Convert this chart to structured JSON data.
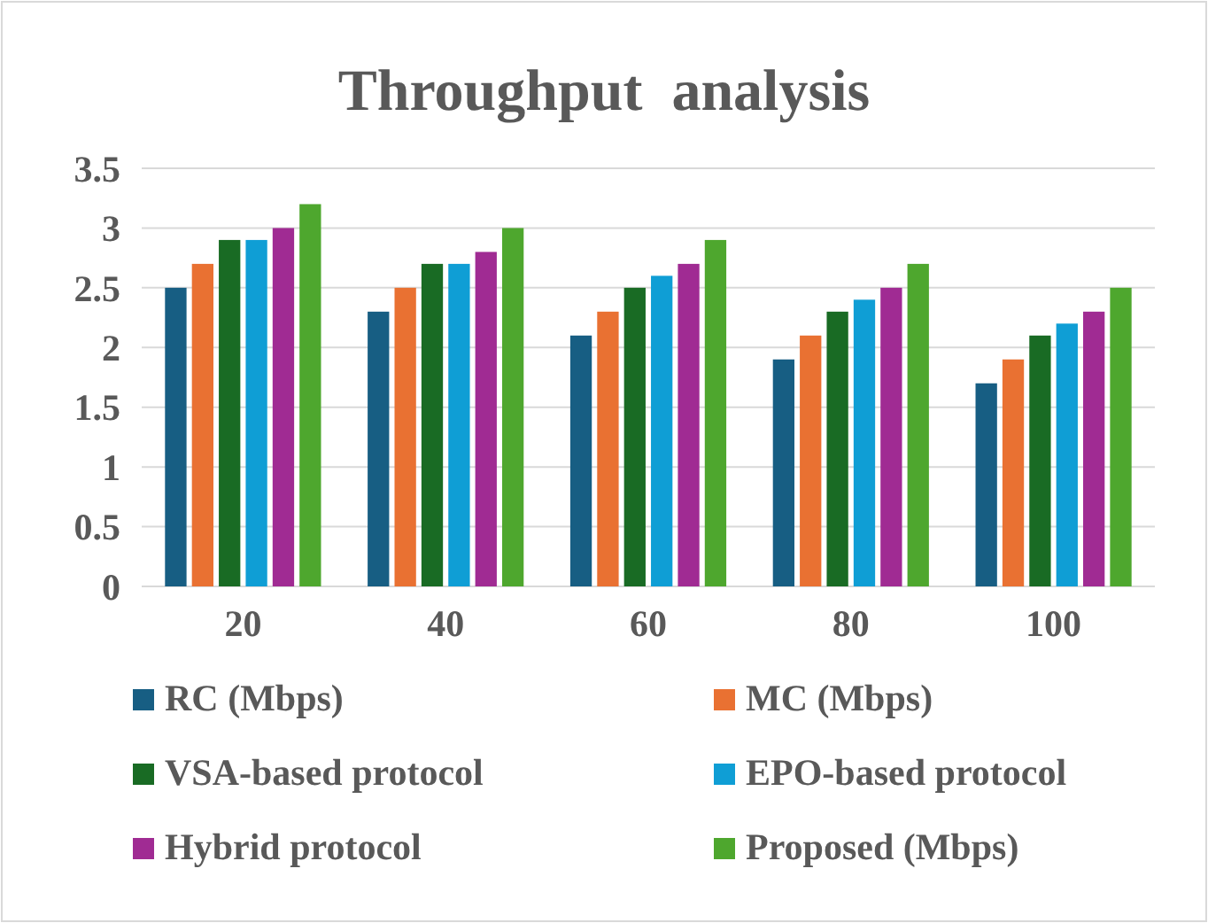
{
  "chart_data": {
    "type": "bar",
    "title": "Throughput  analysis",
    "categories": [
      "20",
      "40",
      "60",
      "80",
      "100"
    ],
    "series": [
      {
        "name": "RC (Mbps)",
        "color": "#175e83",
        "values": [
          2.5,
          2.3,
          2.1,
          1.9,
          1.7
        ]
      },
      {
        "name": "MC (Mbps)",
        "color": "#e97132",
        "values": [
          2.7,
          2.5,
          2.3,
          2.1,
          1.9
        ]
      },
      {
        "name": "VSA-based protocol",
        "color": "#196b24",
        "values": [
          2.9,
          2.7,
          2.5,
          2.3,
          2.1
        ]
      },
      {
        "name": "EPO-based protocol",
        "color": "#0f9ed5",
        "values": [
          2.9,
          2.7,
          2.6,
          2.4,
          2.2
        ]
      },
      {
        "name": "Hybrid protocol",
        "color": "#a02b93",
        "values": [
          3.0,
          2.8,
          2.7,
          2.5,
          2.3
        ]
      },
      {
        "name": "Proposed (Mbps)",
        "color": "#4ea72e",
        "values": [
          3.2,
          3.0,
          2.9,
          2.7,
          2.5
        ]
      }
    ],
    "ylim": [
      0,
      3.5
    ],
    "yticks": [
      0,
      0.5,
      1,
      1.5,
      2,
      2.5,
      3,
      3.5
    ],
    "grid": "y",
    "legend": "bottom"
  }
}
